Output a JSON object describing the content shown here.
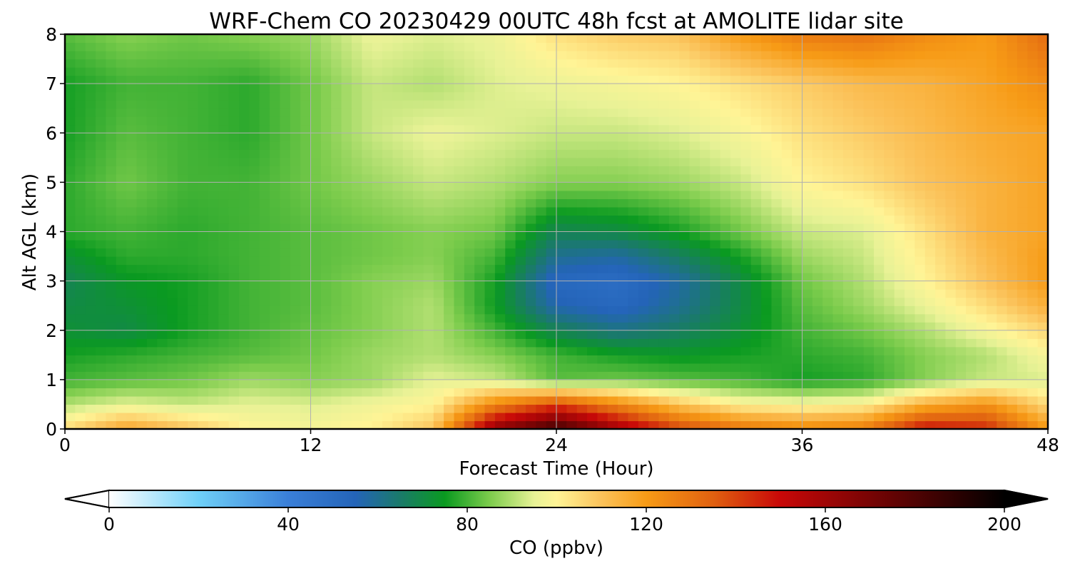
{
  "chart_data": {
    "type": "heatmap",
    "title": "WRF-Chem CO  20230429 00UTC 48h fcst at AMOLITE lidar site",
    "xlabel": "Forecast Time (Hour)",
    "ylabel": "Alt AGL (km)",
    "xlim": [
      0,
      48
    ],
    "ylim": [
      0,
      8
    ],
    "x_ticks": [
      "0",
      "12",
      "24",
      "36",
      "48"
    ],
    "y_ticks": [
      "0",
      "1",
      "2",
      "3",
      "4",
      "5",
      "6",
      "7",
      "8"
    ],
    "grid": true,
    "colorbar": {
      "label": "CO  (ppbv)",
      "range": [
        0,
        200
      ],
      "ticks": [
        "0",
        "40",
        "80",
        "120",
        "160",
        "200"
      ],
      "extend": "both",
      "orientation": "horizontal",
      "placement": "bottom"
    },
    "x_hours": [
      0,
      3,
      6,
      9,
      12,
      15,
      18,
      21,
      24,
      27,
      30,
      33,
      36,
      39,
      42,
      45,
      48
    ],
    "y_km": [
      0,
      0.5,
      1,
      1.5,
      2,
      2.5,
      3,
      3.5,
      4,
      5,
      6,
      7,
      8
    ],
    "z_ppbv": [
      [
        105,
        118,
        110,
        100,
        98,
        101,
        110,
        165,
        185,
        160,
        140,
        130,
        125,
        128,
        150,
        145,
        120
      ],
      [
        90,
        95,
        92,
        95,
        94,
        97,
        100,
        125,
        140,
        125,
        110,
        100,
        98,
        100,
        115,
        122,
        105
      ],
      [
        80,
        82,
        84,
        88,
        86,
        88,
        95,
        92,
        82,
        84,
        82,
        80,
        76,
        78,
        86,
        92,
        94
      ],
      [
        76,
        78,
        80,
        82,
        84,
        88,
        90,
        86,
        80,
        76,
        74,
        76,
        78,
        80,
        86,
        90,
        98
      ],
      [
        72,
        70,
        76,
        80,
        83,
        86,
        90,
        80,
        68,
        62,
        66,
        72,
        80,
        84,
        90,
        98,
        106
      ],
      [
        70,
        72,
        76,
        80,
        82,
        86,
        90,
        75,
        56,
        52,
        60,
        70,
        82,
        88,
        96,
        105,
        115
      ],
      [
        68,
        74,
        76,
        80,
        82,
        86,
        88,
        76,
        52,
        50,
        58,
        70,
        84,
        90,
        100,
        110,
        120
      ],
      [
        72,
        78,
        78,
        80,
        82,
        84,
        86,
        80,
        60,
        58,
        66,
        76,
        88,
        92,
        102,
        112,
        120
      ],
      [
        78,
        80,
        78,
        80,
        82,
        84,
        86,
        84,
        68,
        70,
        76,
        84,
        92,
        94,
        104,
        114,
        118
      ],
      [
        78,
        84,
        80,
        80,
        84,
        88,
        92,
        90,
        86,
        86,
        88,
        92,
        100,
        104,
        110,
        114,
        118
      ],
      [
        76,
        82,
        80,
        78,
        84,
        92,
        96,
        94,
        92,
        92,
        94,
        98,
        104,
        108,
        112,
        116,
        118
      ],
      [
        76,
        80,
        80,
        78,
        84,
        92,
        90,
        94,
        96,
        98,
        100,
        104,
        108,
        112,
        114,
        118,
        124
      ],
      [
        82,
        86,
        84,
        86,
        88,
        96,
        94,
        96,
        104,
        108,
        110,
        120,
        128,
        130,
        124,
        120,
        132
      ]
    ]
  }
}
